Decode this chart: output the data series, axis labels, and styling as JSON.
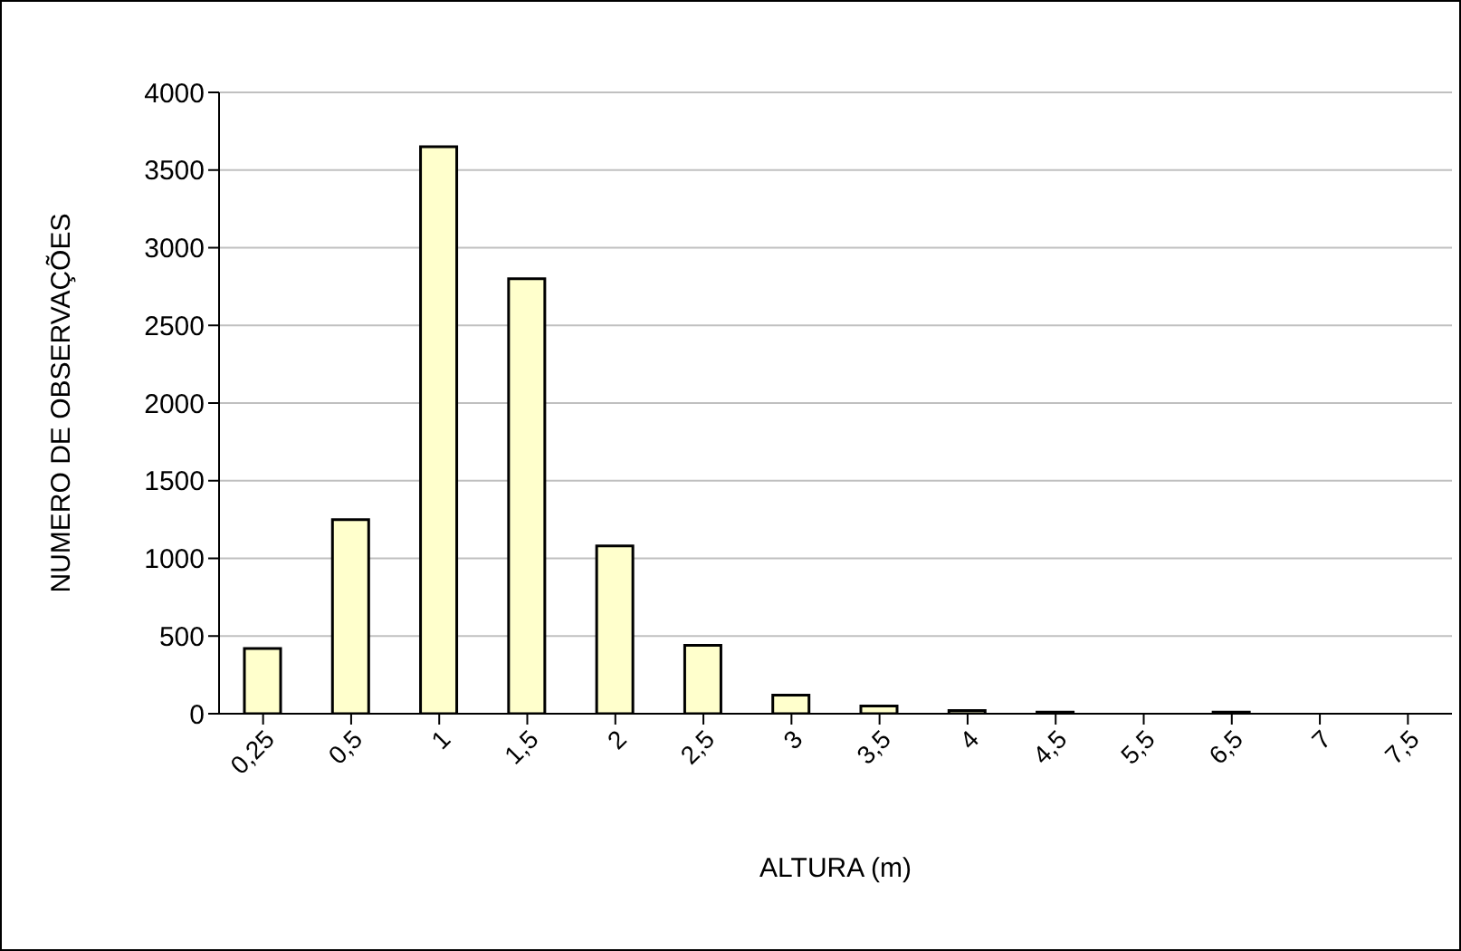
{
  "chart_data": {
    "type": "bar",
    "xlabel": "ALTURA (m)",
    "ylabel": "NUMERO DE OBSERVAÇÕES",
    "categories": [
      "0,25",
      "0,5",
      "1",
      "1,5",
      "2",
      "2,5",
      "3",
      "3,5",
      "4",
      "4,5",
      "5,5",
      "6,5",
      "7",
      "7,5"
    ],
    "values": [
      420,
      1250,
      3650,
      2800,
      1080,
      440,
      120,
      50,
      20,
      10,
      0,
      10,
      0,
      0
    ],
    "color": "#ffffcc",
    "ylim": [
      0,
      4000
    ],
    "yticks": [
      0,
      500,
      1000,
      1500,
      2000,
      2500,
      3000,
      3500,
      4000
    ],
    "grid": "y",
    "legend": false
  }
}
